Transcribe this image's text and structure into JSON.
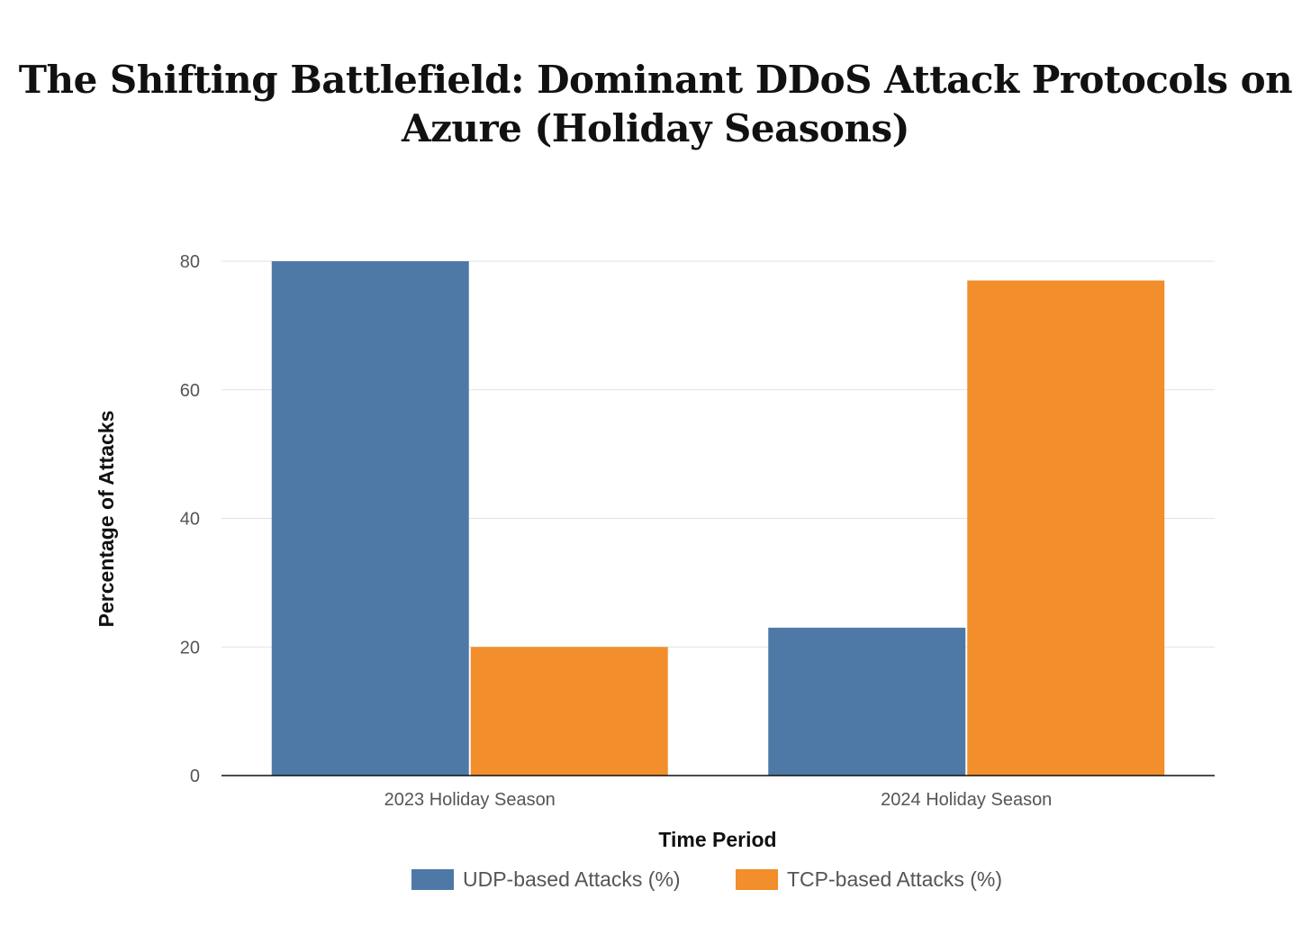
{
  "chart_data": {
    "type": "bar",
    "title": "The Shifting Battlefield: Dominant DDoS Attack Protocols on Azure (Holiday Seasons)",
    "categories": [
      "2023 Holiday Season",
      "2024 Holiday Season"
    ],
    "series": [
      {
        "name": "UDP-based Attacks (%)",
        "color": "#4e79a7",
        "values": [
          80,
          23
        ]
      },
      {
        "name": "TCP-based Attacks (%)",
        "color": "#f28e2b",
        "values": [
          20,
          77
        ]
      }
    ],
    "xlabel": "Time Period",
    "ylabel": "Percentage of Attacks",
    "ylim": [
      0,
      80
    ],
    "yticks": [
      0,
      20,
      40,
      60,
      80
    ],
    "grid": true,
    "legend_position": "bottom-center"
  }
}
